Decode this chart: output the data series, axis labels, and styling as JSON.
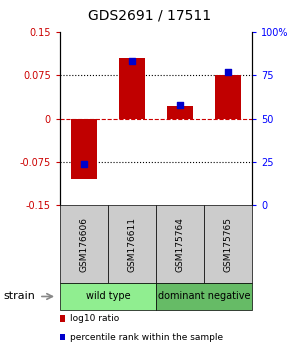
{
  "title": "GDS2691 / 17511",
  "samples": [
    "GSM176606",
    "GSM176611",
    "GSM175764",
    "GSM175765"
  ],
  "log10_ratio": [
    -0.105,
    0.105,
    0.022,
    0.075
  ],
  "percentile_rank": [
    24,
    83,
    58,
    77
  ],
  "ylim_left": [
    -0.15,
    0.15
  ],
  "ylim_right": [
    0,
    100
  ],
  "yticks_left": [
    -0.15,
    -0.075,
    0,
    0.075,
    0.15
  ],
  "yticks_right": [
    0,
    25,
    50,
    75,
    100
  ],
  "ytick_labels_left": [
    "-0.15",
    "-0.075",
    "0",
    "0.075",
    "0.15"
  ],
  "ytick_labels_right": [
    "0",
    "25",
    "50",
    "75",
    "100%"
  ],
  "hlines_dotted": [
    0.075,
    -0.075
  ],
  "hline_dashed": 0,
  "bar_color": "#c00000",
  "dot_color": "#0000cc",
  "groups": [
    {
      "label": "wild type",
      "color": "#90ee90",
      "span": [
        0,
        1
      ]
    },
    {
      "label": "dominant negative",
      "color": "#66bb66",
      "span": [
        2,
        3
      ]
    }
  ],
  "strain_label": "strain",
  "legend_items": [
    {
      "color": "#c00000",
      "label": "log10 ratio"
    },
    {
      "color": "#0000cc",
      "label": "percentile rank within the sample"
    }
  ],
  "sample_box_color": "#cccccc",
  "background_color": "#ffffff",
  "bar_width": 0.55
}
